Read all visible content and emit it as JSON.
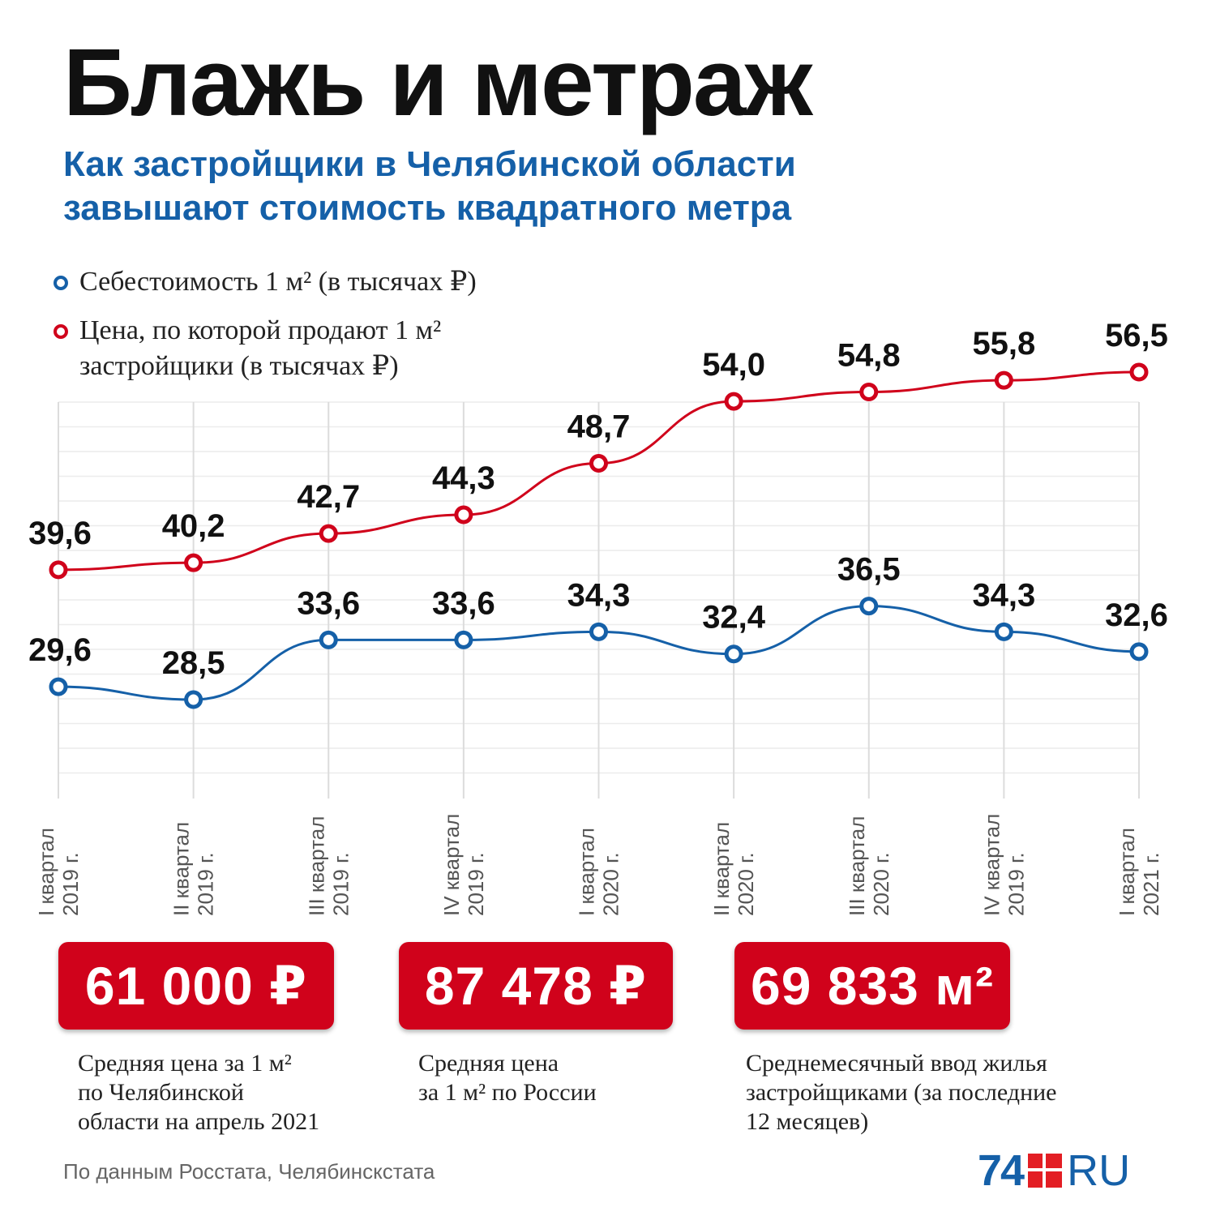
{
  "title": "Блажь и метраж",
  "subtitle_line1": "Как застройщики в Челябинской области",
  "subtitle_line2": "завышают стоимость квадратного метра",
  "legend": {
    "cost_label": "Себестоимость 1 м² (в тысячах ₽)",
    "price_label_line1": "Цена, по которой продают 1 м²",
    "price_label_line2": "застройщики (в тысячах ₽)"
  },
  "colors": {
    "blue": "#1560a8",
    "red": "#d0021b"
  },
  "chart_data": {
    "type": "line",
    "categories": [
      [
        "I квартал",
        "2019 г."
      ],
      [
        "II квартал",
        "2019 г."
      ],
      [
        "III квартал",
        "2019 г."
      ],
      [
        "IV квартал",
        "2019 г."
      ],
      [
        "I квартал",
        "2020 г."
      ],
      [
        "II квартал",
        "2020 г."
      ],
      [
        "III квартал",
        "2020 г."
      ],
      [
        "IV квартал",
        "2019 г."
      ],
      [
        "I квартал",
        "2021 г."
      ]
    ],
    "series": [
      {
        "name": "Цена, по которой продают 1 м² застройщики (в тысячах ₽)",
        "color": "#d0021b",
        "values": [
          39.6,
          40.2,
          42.7,
          44.3,
          48.7,
          54.0,
          54.8,
          55.8,
          56.5
        ],
        "labels": [
          "39,6",
          "40,2",
          "42,7",
          "44,3",
          "48,7",
          "54,0",
          "54,8",
          "55,8",
          "56,5"
        ]
      },
      {
        "name": "Себестоимость 1 м² (в тысячах ₽)",
        "color": "#1560a8",
        "values": [
          29.6,
          28.5,
          33.6,
          33.6,
          34.3,
          32.4,
          36.5,
          34.3,
          32.6
        ],
        "labels": [
          "29,6",
          "28,5",
          "33,6",
          "33,6",
          "34,3",
          "32,4",
          "36,5",
          "34,3",
          "32,6"
        ]
      }
    ]
  },
  "stats": [
    {
      "value": "61 000 ₽",
      "desc": [
        "Средняя цена за 1 м²",
        "по Челябинской",
        "области на апрель 2021"
      ]
    },
    {
      "value": "87 478 ₽",
      "desc": [
        "Средняя цена",
        "за 1 м² по России"
      ]
    },
    {
      "value": "69 833 м²",
      "desc": [
        "Среднемесячный ввод жилья",
        "застройщиками (за последние",
        "12 месяцев)"
      ]
    }
  ],
  "source": "По данным Росстата, Челябинскстата",
  "logo": {
    "num": "74",
    "ru": "RU"
  }
}
